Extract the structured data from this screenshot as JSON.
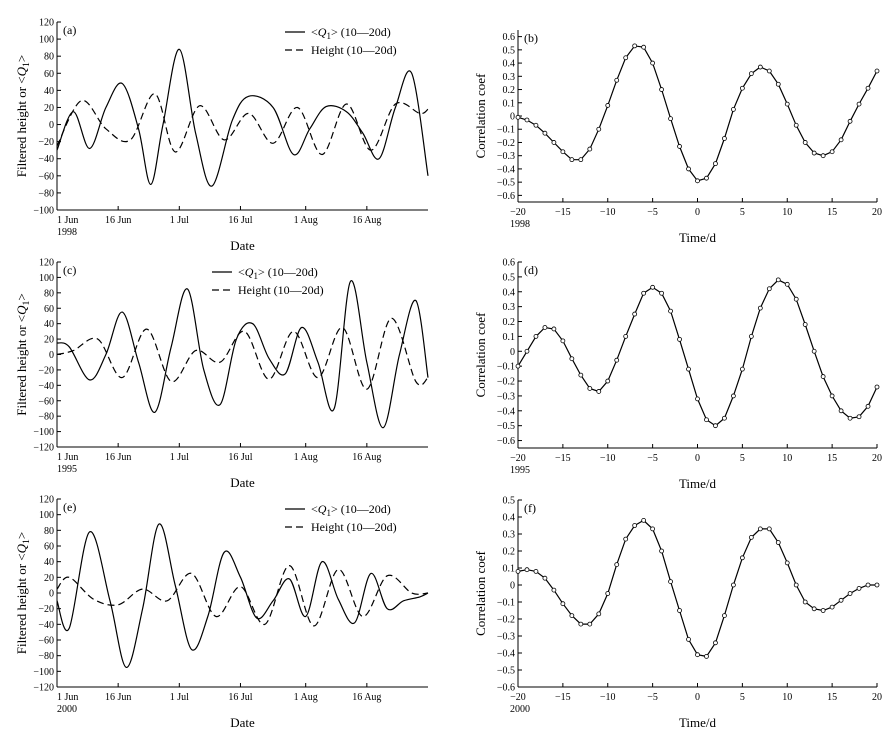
{
  "chart_data": [
    {
      "panel": "(a)",
      "type": "line",
      "ylabel": "Filtered height or <Q1>",
      "xlabel": "Date",
      "year": "1998",
      "ylim": [
        -100,
        120
      ],
      "yticks": [
        -100,
        -80,
        -60,
        -40,
        -20,
        0,
        20,
        40,
        60,
        80,
        100,
        120
      ],
      "xlim": [
        0,
        91
      ],
      "xticks": [
        {
          "x": 0,
          "label": "1 Jun"
        },
        {
          "x": 15,
          "label": "16 Jun"
        },
        {
          "x": 30,
          "label": "1 Jul"
        },
        {
          "x": 45,
          "label": "16 Jul"
        },
        {
          "x": 61,
          "label": "1 Aug"
        },
        {
          "x": 76,
          "label": "16 Aug"
        }
      ],
      "legend_position": "top-right",
      "series": [
        {
          "name": "<Q1> (10—20d)",
          "style": "solid",
          "x": [
            0,
            4,
            8,
            12,
            16,
            20,
            23,
            26,
            30,
            34,
            38,
            43,
            47,
            53,
            58,
            62,
            66,
            71,
            75,
            79,
            83,
            87,
            91
          ],
          "y": [
            -30,
            15,
            -28,
            20,
            48,
            -5,
            -70,
            0,
            88,
            -10,
            -72,
            5,
            33,
            20,
            -35,
            -5,
            21,
            15,
            -10,
            -40,
            20,
            60,
            -60
          ]
        },
        {
          "name": "Height (10—20d)",
          "style": "dashed",
          "x": [
            0,
            6,
            12,
            18,
            24,
            29,
            35,
            41,
            47,
            53,
            59,
            65,
            71,
            77,
            83,
            89,
            91
          ],
          "y": [
            -25,
            28,
            -5,
            -18,
            36,
            -32,
            22,
            -18,
            13,
            -22,
            20,
            -35,
            24,
            -30,
            24,
            13,
            18
          ]
        }
      ]
    },
    {
      "panel": "(b)",
      "type": "line",
      "ylabel": "Correlation coef",
      "xlabel": "Time/d",
      "year": "1998",
      "ylim": [
        -0.65,
        0.65
      ],
      "yticks": [
        -0.6,
        -0.5,
        -0.4,
        -0.3,
        -0.2,
        -0.1,
        0,
        0.1,
        0.2,
        0.3,
        0.4,
        0.5,
        0.6
      ],
      "xlim": [
        -20,
        20
      ],
      "xticks": [
        -20,
        -15,
        -10,
        -5,
        0,
        5,
        10,
        15,
        20
      ],
      "series": [
        {
          "name": "",
          "markers": true,
          "x": [
            -20,
            -19,
            -18,
            -17,
            -16,
            -15,
            -14,
            -13,
            -12,
            -11,
            -10,
            -9,
            -8,
            -7,
            -6,
            -5,
            -4,
            -3,
            -2,
            -1,
            0,
            1,
            2,
            3,
            4,
            5,
            6,
            7,
            8,
            9,
            10,
            11,
            12,
            13,
            14,
            15,
            16,
            17,
            18,
            19,
            20
          ],
          "y": [
            -0.01,
            -0.03,
            -0.07,
            -0.13,
            -0.2,
            -0.27,
            -0.33,
            -0.33,
            -0.25,
            -0.1,
            0.08,
            0.27,
            0.44,
            0.53,
            0.52,
            0.4,
            0.2,
            -0.02,
            -0.23,
            -0.4,
            -0.49,
            -0.47,
            -0.36,
            -0.17,
            0.05,
            0.21,
            0.32,
            0.37,
            0.34,
            0.24,
            0.09,
            -0.07,
            -0.2,
            -0.28,
            -0.3,
            -0.27,
            -0.18,
            -0.04,
            0.09,
            0.21,
            0.34
          ]
        }
      ]
    },
    {
      "panel": "(c)",
      "type": "line",
      "ylabel": "Filtered height or <Q1>",
      "xlabel": "Date",
      "year": "1995",
      "ylim": [
        -120,
        120
      ],
      "yticks": [
        -120,
        -100,
        -80,
        -60,
        -40,
        -20,
        0,
        20,
        40,
        60,
        80,
        100,
        120
      ],
      "xlim": [
        0,
        91
      ],
      "xticks": [
        {
          "x": 0,
          "label": "1 Jun"
        },
        {
          "x": 15,
          "label": "16 Jun"
        },
        {
          "x": 30,
          "label": "1 Jul"
        },
        {
          "x": 45,
          "label": "16 Jul"
        },
        {
          "x": 61,
          "label": "1 Aug"
        },
        {
          "x": 76,
          "label": "16 Aug"
        }
      ],
      "legend_position": "top-center",
      "series": [
        {
          "name": "<Q1> (10—20d)",
          "style": "solid",
          "x": [
            0,
            3,
            8,
            12,
            16,
            20,
            24,
            28,
            32,
            36,
            40,
            44,
            48,
            52,
            56,
            60,
            64,
            68,
            72,
            76,
            80,
            84,
            88,
            91
          ],
          "y": [
            15,
            10,
            -33,
            0,
            55,
            -10,
            -75,
            10,
            85,
            -20,
            -65,
            20,
            40,
            -5,
            -25,
            35,
            -10,
            -70,
            95,
            -10,
            -95,
            0,
            70,
            -30
          ]
        },
        {
          "name": "Height (10—20d)",
          "style": "dashed",
          "x": [
            0,
            4,
            10,
            16,
            22,
            28,
            34,
            40,
            46,
            52,
            58,
            64,
            70,
            76,
            82,
            88,
            91
          ],
          "y": [
            0,
            5,
            20,
            -30,
            33,
            -35,
            5,
            -10,
            30,
            -32,
            30,
            -30,
            35,
            -45,
            47,
            -35,
            -30
          ]
        }
      ]
    },
    {
      "panel": "(d)",
      "type": "line",
      "ylabel": "Correlation coef",
      "xlabel": "Time/d",
      "year": "1995",
      "ylim": [
        -0.65,
        0.6
      ],
      "yticks": [
        -0.6,
        -0.5,
        -0.4,
        -0.3,
        -0.2,
        -0.1,
        0,
        0.1,
        0.2,
        0.3,
        0.4,
        0.5,
        0.6
      ],
      "xlim": [
        -20,
        20
      ],
      "xticks": [
        -20,
        -15,
        -10,
        -5,
        0,
        5,
        10,
        15,
        20
      ],
      "series": [
        {
          "name": "",
          "markers": true,
          "x": [
            -20,
            -19,
            -18,
            -17,
            -16,
            -15,
            -14,
            -13,
            -12,
            -11,
            -10,
            -9,
            -8,
            -7,
            -6,
            -5,
            -4,
            -3,
            -2,
            -1,
            0,
            1,
            2,
            3,
            4,
            5,
            6,
            7,
            8,
            9,
            10,
            11,
            12,
            13,
            14,
            15,
            16,
            17,
            18,
            19,
            20
          ],
          "y": [
            -0.1,
            0.0,
            0.1,
            0.16,
            0.15,
            0.07,
            -0.05,
            -0.16,
            -0.25,
            -0.27,
            -0.2,
            -0.06,
            0.1,
            0.25,
            0.39,
            0.43,
            0.39,
            0.27,
            0.08,
            -0.12,
            -0.32,
            -0.46,
            -0.5,
            -0.45,
            -0.3,
            -0.12,
            0.1,
            0.29,
            0.42,
            0.48,
            0.45,
            0.35,
            0.18,
            0.0,
            -0.17,
            -0.3,
            -0.4,
            -0.45,
            -0.44,
            -0.37,
            -0.24
          ]
        }
      ]
    },
    {
      "panel": "(e)",
      "type": "line",
      "ylabel": "Filtered height or <Q1>",
      "xlabel": "Date",
      "year": "2000",
      "ylim": [
        -120,
        120
      ],
      "yticks": [
        -120,
        -100,
        -80,
        -60,
        -40,
        -20,
        0,
        20,
        40,
        60,
        80,
        100,
        120
      ],
      "xlim": [
        0,
        91
      ],
      "xticks": [
        {
          "x": 0,
          "label": "1 Jun"
        },
        {
          "x": 15,
          "label": "16 Jun"
        },
        {
          "x": 30,
          "label": "1 Jul"
        },
        {
          "x": 45,
          "label": "16 Jul"
        },
        {
          "x": 61,
          "label": "1 Aug"
        },
        {
          "x": 76,
          "label": "16 Aug"
        }
      ],
      "legend_position": "top-right",
      "series": [
        {
          "name": "<Q1> (10—20d)",
          "style": "solid",
          "x": [
            0,
            3,
            8,
            13,
            17,
            21,
            25,
            29,
            33,
            37,
            41,
            45,
            49,
            53,
            57,
            61,
            65,
            69,
            73,
            77,
            81,
            85,
            89,
            91
          ],
          "y": [
            -10,
            -45,
            78,
            -10,
            -95,
            -20,
            88,
            10,
            -72,
            -30,
            52,
            20,
            -32,
            -10,
            18,
            -30,
            40,
            -8,
            -38,
            25,
            -20,
            -10,
            -5,
            0
          ]
        },
        {
          "name": "Height (10—20d)",
          "style": "dashed",
          "x": [
            0,
            3,
            9,
            15,
            21,
            27,
            33,
            39,
            45,
            51,
            57,
            63,
            69,
            75,
            81,
            87,
            91
          ],
          "y": [
            5,
            20,
            -8,
            -15,
            5,
            -10,
            25,
            -30,
            8,
            -40,
            35,
            -42,
            30,
            -30,
            22,
            0,
            0
          ]
        }
      ]
    },
    {
      "panel": "(f)",
      "type": "line",
      "ylabel": "Correlation coef",
      "xlabel": "Time/d",
      "year": "2000",
      "ylim": [
        -0.6,
        0.5
      ],
      "yticks": [
        -0.6,
        -0.5,
        -0.4,
        -0.3,
        -0.2,
        -0.1,
        0,
        0.1,
        0.2,
        0.3,
        0.4,
        0.5
      ],
      "xlim": [
        -20,
        20
      ],
      "xticks": [
        -20,
        -15,
        -10,
        -5,
        0,
        5,
        10,
        15,
        20
      ],
      "series": [
        {
          "name": "",
          "markers": true,
          "x": [
            -20,
            -19,
            -18,
            -17,
            -16,
            -15,
            -14,
            -13,
            -12,
            -11,
            -10,
            -9,
            -8,
            -7,
            -6,
            -5,
            -4,
            -3,
            -2,
            -1,
            0,
            1,
            2,
            3,
            4,
            5,
            6,
            7,
            8,
            9,
            10,
            11,
            12,
            13,
            14,
            15,
            16,
            17,
            18,
            19,
            20
          ],
          "y": [
            0.08,
            0.09,
            0.08,
            0.04,
            -0.03,
            -0.11,
            -0.18,
            -0.23,
            -0.23,
            -0.17,
            -0.05,
            0.12,
            0.27,
            0.35,
            0.38,
            0.33,
            0.2,
            0.02,
            -0.15,
            -0.32,
            -0.41,
            -0.42,
            -0.34,
            -0.18,
            0.0,
            0.16,
            0.28,
            0.33,
            0.33,
            0.25,
            0.13,
            0.0,
            -0.1,
            -0.14,
            -0.15,
            -0.13,
            -0.09,
            -0.05,
            -0.02,
            0.0,
            0.0
          ]
        }
      ]
    }
  ]
}
